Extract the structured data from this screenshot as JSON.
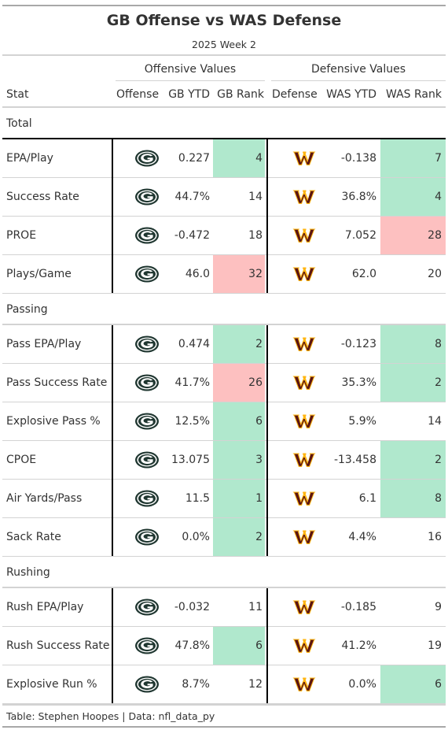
{
  "title": "GB Offense vs WAS Defense",
  "subtitle": "2025 Week 2",
  "spanners": {
    "offense": "Offensive Values",
    "defense": "Defensive Values"
  },
  "columns": {
    "stat": "Stat",
    "offense": "Offense",
    "gb_ytd": "GB YTD",
    "gb_rank": "GB Rank",
    "defense": "Defense",
    "was_ytd": "WAS YTD",
    "was_rank": "WAS Rank"
  },
  "colors": {
    "good": "#b0e8cd",
    "bad": "#fdc0c0",
    "gb_green": "#203731",
    "gb_gold": "#ffb612",
    "was_burgundy": "#5a1414",
    "was_gold": "#ffb612"
  },
  "icons": {
    "offense": "gb-packers-logo-icon",
    "defense": "was-commanders-logo-icon"
  },
  "groups": [
    {
      "label": "Total",
      "rows": [
        {
          "stat": "EPA/Play",
          "gb_ytd": "0.227",
          "gb_rank": "4",
          "gb_shade": "good",
          "was_ytd": "-0.138",
          "was_rank": "7",
          "was_shade": "good"
        },
        {
          "stat": "Success Rate",
          "gb_ytd": "44.7%",
          "gb_rank": "14",
          "gb_shade": "",
          "was_ytd": "36.8%",
          "was_rank": "4",
          "was_shade": "good"
        },
        {
          "stat": "PROE",
          "gb_ytd": "-0.472",
          "gb_rank": "18",
          "gb_shade": "",
          "was_ytd": "7.052",
          "was_rank": "28",
          "was_shade": "bad"
        },
        {
          "stat": "Plays/Game",
          "gb_ytd": "46.0",
          "gb_rank": "32",
          "gb_shade": "bad",
          "was_ytd": "62.0",
          "was_rank": "20",
          "was_shade": ""
        }
      ]
    },
    {
      "label": "Passing",
      "rows": [
        {
          "stat": "Pass EPA/Play",
          "gb_ytd": "0.474",
          "gb_rank": "2",
          "gb_shade": "good",
          "was_ytd": "-0.123",
          "was_rank": "8",
          "was_shade": "good"
        },
        {
          "stat": "Pass Success Rate",
          "gb_ytd": "41.7%",
          "gb_rank": "26",
          "gb_shade": "bad",
          "was_ytd": "35.3%",
          "was_rank": "2",
          "was_shade": "good"
        },
        {
          "stat": "Explosive Pass %",
          "gb_ytd": "12.5%",
          "gb_rank": "6",
          "gb_shade": "good",
          "was_ytd": "5.9%",
          "was_rank": "14",
          "was_shade": ""
        },
        {
          "stat": "CPOE",
          "gb_ytd": "13.075",
          "gb_rank": "3",
          "gb_shade": "good",
          "was_ytd": "-13.458",
          "was_rank": "2",
          "was_shade": "good"
        },
        {
          "stat": "Air Yards/Pass",
          "gb_ytd": "11.5",
          "gb_rank": "1",
          "gb_shade": "good",
          "was_ytd": "6.1",
          "was_rank": "8",
          "was_shade": "good"
        },
        {
          "stat": "Sack Rate",
          "gb_ytd": "0.0%",
          "gb_rank": "2",
          "gb_shade": "good",
          "was_ytd": "4.4%",
          "was_rank": "16",
          "was_shade": ""
        }
      ]
    },
    {
      "label": "Rushing",
      "rows": [
        {
          "stat": "Rush EPA/Play",
          "gb_ytd": "-0.032",
          "gb_rank": "11",
          "gb_shade": "",
          "was_ytd": "-0.185",
          "was_rank": "9",
          "was_shade": ""
        },
        {
          "stat": "Rush Success Rate",
          "gb_ytd": "47.8%",
          "gb_rank": "6",
          "gb_shade": "good",
          "was_ytd": "41.2%",
          "was_rank": "19",
          "was_shade": ""
        },
        {
          "stat": "Explosive Run %",
          "gb_ytd": "8.7%",
          "gb_rank": "12",
          "gb_shade": "",
          "was_ytd": "0.0%",
          "was_rank": "6",
          "was_shade": "good"
        }
      ]
    }
  ],
  "source_note": "Table: Stephen Hoopes | Data: nfl_data_py"
}
